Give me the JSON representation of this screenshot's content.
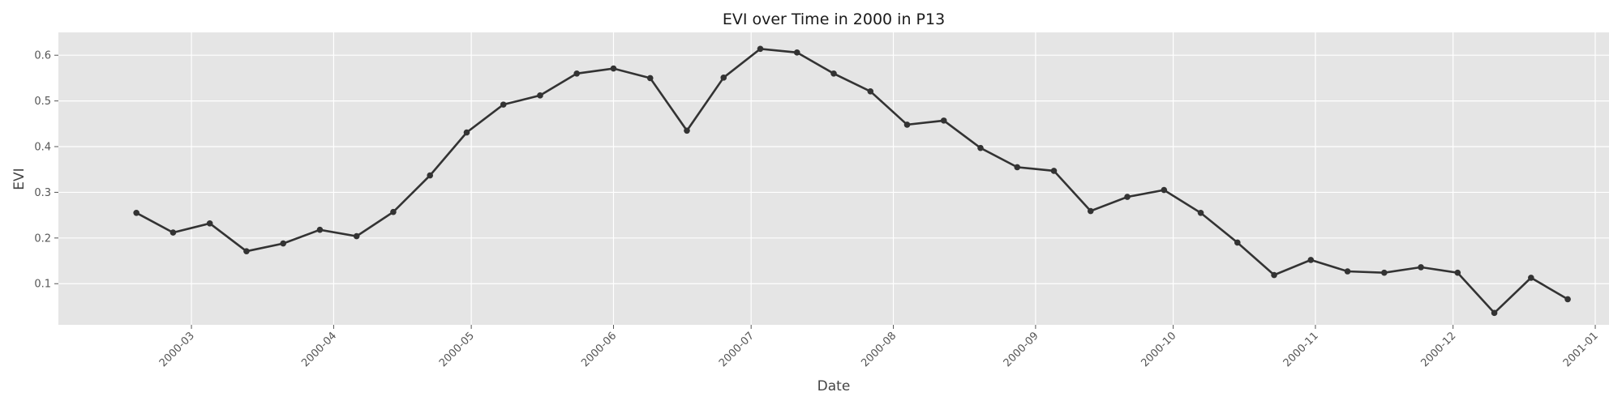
{
  "chart_data": {
    "type": "line",
    "title": "EVI over Time in 2000 in P13",
    "xlabel": "Date",
    "ylabel": "EVI",
    "x_axis": "date",
    "xlim": [
      "2000-02-01",
      "2001-01-04"
    ],
    "ylim": [
      0.01,
      0.65
    ],
    "yticks": [
      0.1,
      0.2,
      0.3,
      0.4,
      0.5,
      0.6
    ],
    "ytick_labels": [
      "0.1",
      "0.2",
      "0.3",
      "0.4",
      "0.5",
      "0.6"
    ],
    "xticks": [
      "2000-03-01",
      "2000-04-01",
      "2000-05-01",
      "2000-06-01",
      "2000-07-01",
      "2000-08-01",
      "2000-09-01",
      "2000-10-01",
      "2000-11-01",
      "2000-12-01",
      "2001-01-01"
    ],
    "xtick_labels": [
      "2000-03",
      "2000-04",
      "2000-05",
      "2000-06",
      "2000-07",
      "2000-08",
      "2000-09",
      "2000-10",
      "2000-11",
      "2000-12",
      "2001-01"
    ],
    "grid": true,
    "background": "#e5e5e5",
    "line_color": "#333333",
    "series": [
      {
        "x": [
          "2000-02-18",
          "2000-02-26",
          "2000-03-05",
          "2000-03-13",
          "2000-03-21",
          "2000-03-29",
          "2000-04-06",
          "2000-04-14",
          "2000-04-22",
          "2000-04-30",
          "2000-05-08",
          "2000-05-16",
          "2000-05-24",
          "2000-06-01",
          "2000-06-09",
          "2000-06-17",
          "2000-06-25",
          "2000-07-03",
          "2000-07-11",
          "2000-07-19",
          "2000-07-27",
          "2000-08-04",
          "2000-08-12",
          "2000-08-20",
          "2000-08-28",
          "2000-09-05",
          "2000-09-13",
          "2000-09-21",
          "2000-09-29",
          "2000-10-07",
          "2000-10-15",
          "2000-10-23",
          "2000-10-31",
          "2000-11-08",
          "2000-11-16",
          "2000-11-24",
          "2000-12-02",
          "2000-12-10",
          "2000-12-18",
          "2000-12-26"
        ],
        "values": [
          0.255,
          0.212,
          0.232,
          0.171,
          0.188,
          0.218,
          0.204,
          0.257,
          0.337,
          0.431,
          0.492,
          0.512,
          0.56,
          0.571,
          0.55,
          0.435,
          0.551,
          0.614,
          0.606,
          0.56,
          0.521,
          0.448,
          0.457,
          0.397,
          0.355,
          0.347,
          0.259,
          0.29,
          0.305,
          0.255,
          0.19,
          0.119,
          0.152,
          0.127,
          0.124,
          0.136,
          0.124,
          0.036,
          0.113,
          0.066
        ]
      }
    ]
  }
}
